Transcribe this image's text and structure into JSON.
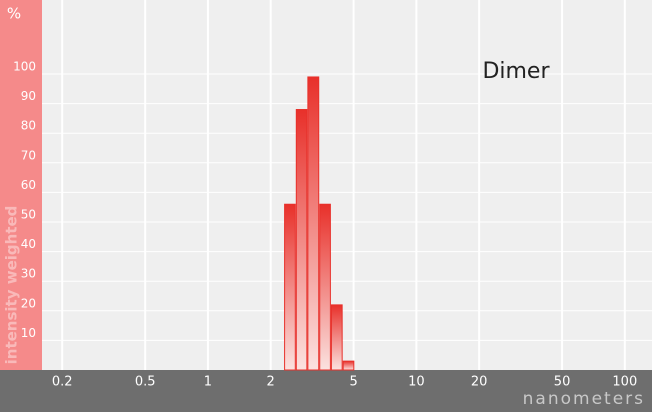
{
  "chart_data": {
    "type": "histogram",
    "y_unit": "%",
    "y_label": "intensity weighted",
    "x_label": "nanometers",
    "annotation": "Dimer",
    "bins": [
      2.32,
      2.64,
      3.0,
      3.42,
      3.89,
      4.43,
      5.04
    ],
    "values": [
      56,
      88,
      99,
      56,
      22,
      3
    ],
    "color": "#e8302a",
    "x_log": true,
    "xlim": [
      0.16,
      135
    ],
    "xticks": [
      0.2,
      0.5,
      1,
      2,
      5,
      10,
      20,
      50,
      100
    ],
    "ylim": [
      0,
      125
    ],
    "yticks": [
      10,
      20,
      30,
      40,
      50,
      60,
      70,
      80,
      90,
      100
    ],
    "grid": true
  }
}
